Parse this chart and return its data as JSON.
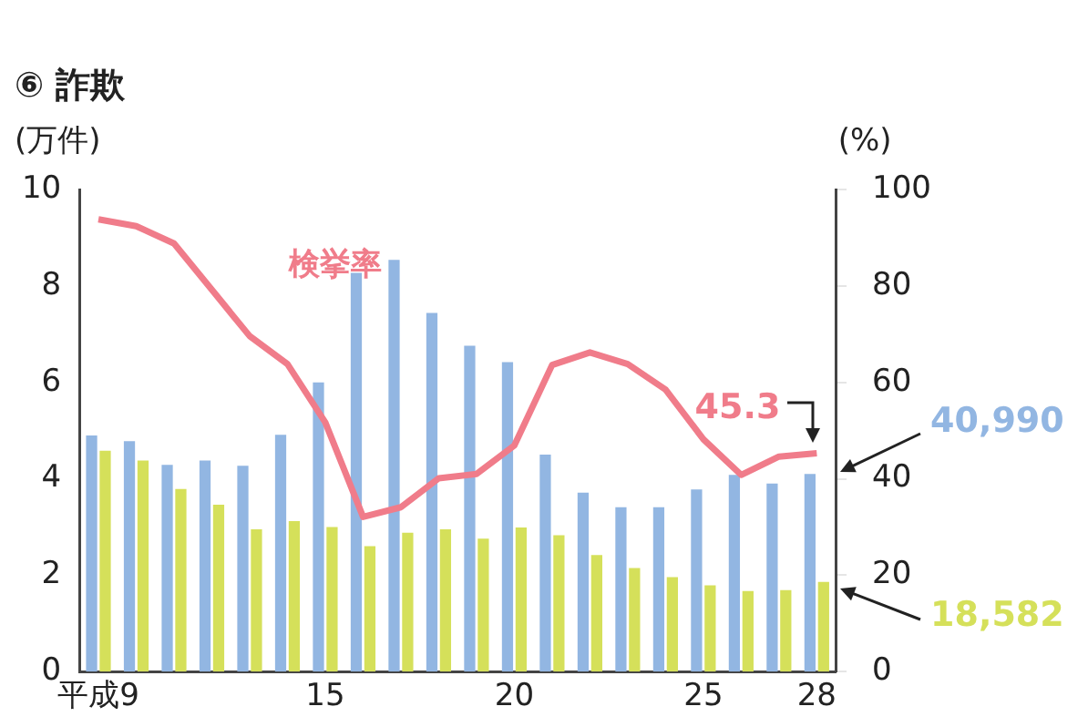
{
  "chart_data": {
    "type": "bar",
    "title": "⑥ 詐欺",
    "ylabel": "(万件)",
    "y2label": "(%)",
    "categories": [
      "平成9",
      null,
      null,
      null,
      null,
      null,
      "15",
      null,
      null,
      null,
      null,
      "20",
      null,
      null,
      null,
      null,
      "25",
      null,
      null,
      "28"
    ],
    "series": [
      {
        "color": "#92b6e2",
        "values": [
          4.9,
          4.78,
          4.29,
          4.38,
          4.27,
          4.91,
          6.0,
          8.27,
          8.54,
          7.44,
          6.76,
          6.42,
          4.5,
          3.71,
          3.41,
          3.41,
          3.78,
          4.08,
          3.9,
          4.1
        ]
      },
      {
        "color": "#d5e05a",
        "values": [
          4.58,
          4.38,
          3.79,
          3.46,
          2.95,
          3.12,
          3.0,
          2.6,
          2.88,
          2.95,
          2.76,
          2.99,
          2.83,
          2.42,
          2.15,
          1.96,
          1.79,
          1.67,
          1.69,
          1.86
        ]
      },
      {
        "type": "line",
        "name": "検挙率",
        "axis": "y2",
        "color": "#f07c8a",
        "values": [
          93.8,
          92.4,
          88.8,
          79.2,
          69.6,
          63.8,
          51.7,
          32.1,
          34.1,
          40.1,
          41.0,
          46.9,
          63.6,
          66.2,
          63.8,
          58.5,
          48.2,
          40.8,
          44.6,
          45.3
        ],
        "value_labels": [
          null,
          null,
          null,
          null,
          null,
          null,
          null,
          null,
          null,
          null,
          null,
          null,
          null,
          null,
          null,
          null,
          null,
          null,
          null,
          "45.3"
        ]
      }
    ],
    "ylim": [
      0,
      10
    ],
    "yticks": [
      0,
      2,
      4,
      6,
      8,
      10
    ],
    "y2lim": [
      0,
      100
    ],
    "y2ticks": [
      0,
      20,
      40,
      60,
      80,
      100
    ],
    "annotations": [
      "40,990",
      "18,582"
    ],
    "grid": false,
    "legend": false,
    "marker": "none"
  }
}
